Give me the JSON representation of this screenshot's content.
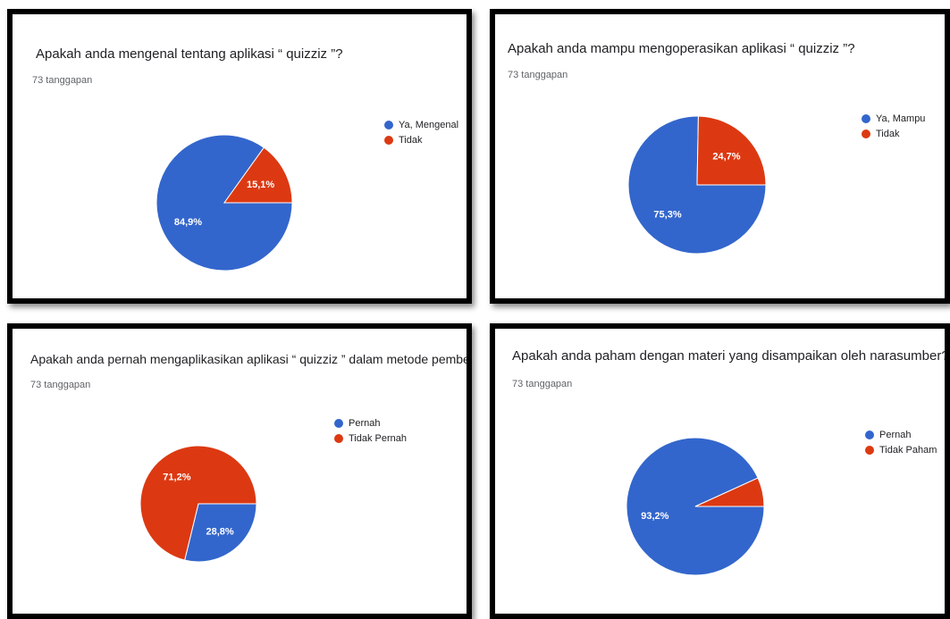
{
  "colors": {
    "blue": "#3366cc",
    "red": "#dc3912"
  },
  "chart_data": [
    {
      "type": "pie",
      "title": "Apakah anda mengenal tentang aplikasi “ quizziz ”?",
      "responses": "73 tanggapan",
      "categories": [
        "Ya, Mengenal",
        "Tidak"
      ],
      "values": [
        84.9,
        15.1
      ],
      "labels": [
        "84,9%",
        "15,1%"
      ],
      "colors": [
        "#3366cc",
        "#dc3912"
      ],
      "legend": "right"
    },
    {
      "type": "pie",
      "title": "Apakah anda mampu mengoperasikan aplikasi “ quizziz ”?",
      "responses": "73 tanggapan",
      "categories": [
        "Ya, Mampu",
        "Tidak"
      ],
      "values": [
        75.3,
        24.7
      ],
      "labels": [
        "75,3%",
        "24,7%"
      ],
      "colors": [
        "#3366cc",
        "#dc3912"
      ],
      "legend": "right"
    },
    {
      "type": "pie",
      "title": "Apakah anda pernah mengaplikasikan aplikasi “ quizziz ” dalam metode pembelajaran anda?",
      "responses": "73 tanggapan",
      "categories": [
        "Pernah",
        "Tidak Pernah"
      ],
      "values": [
        28.8,
        71.2
      ],
      "labels": [
        "28,8%",
        "71,2%"
      ],
      "colors": [
        "#3366cc",
        "#dc3912"
      ],
      "legend": "right"
    },
    {
      "type": "pie",
      "title": "Apakah anda paham dengan materi yang disampaikan oleh narasumber?",
      "responses": "73 tanggapan",
      "categories": [
        "Pernah",
        "Tidak Paham"
      ],
      "values": [
        93.2,
        6.8
      ],
      "labels": [
        "93,2%",
        ""
      ],
      "colors": [
        "#3366cc",
        "#dc3912"
      ],
      "legend": "right"
    }
  ]
}
